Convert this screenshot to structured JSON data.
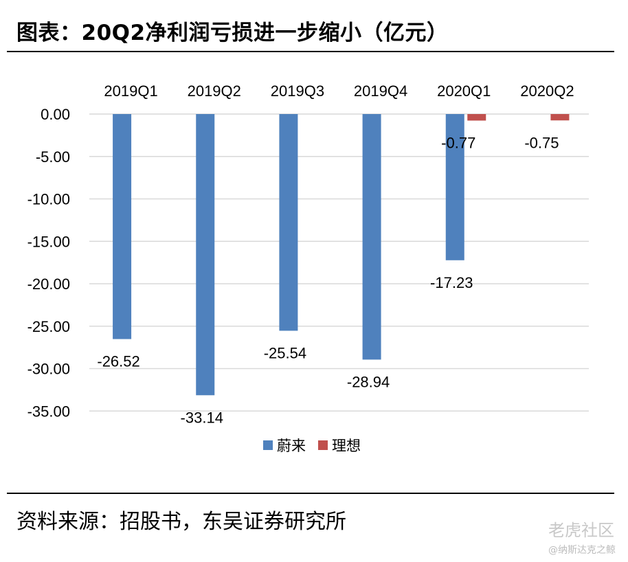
{
  "header": {
    "title": "图表：20Q2净利润亏损进一步缩小（亿元）"
  },
  "footer": {
    "source": "资料来源：招股书，东吴证券研究所"
  },
  "watermark": {
    "brand": "老虎社区",
    "handle": "@纳斯达克之鲸"
  },
  "colors": {
    "nio": "#4F81BD",
    "li": "#C0504D",
    "grid": "#D9D9D9"
  },
  "chart_data": {
    "type": "bar",
    "categories": [
      "2019Q1",
      "2019Q2",
      "2019Q3",
      "2019Q4",
      "2020Q1",
      "2020Q2"
    ],
    "series": [
      {
        "name": "蔚来",
        "values": [
          -26.52,
          -33.14,
          -25.54,
          -28.94,
          -17.23,
          null
        ]
      },
      {
        "name": "理想",
        "values": [
          null,
          null,
          null,
          null,
          -0.77,
          -0.75
        ]
      }
    ],
    "data_labels": [
      [
        "-26.52",
        "-33.14",
        "-25.54",
        "-28.94",
        "-17.23",
        ""
      ],
      [
        "",
        "",
        "",
        "",
        "-0.77",
        "-0.75"
      ]
    ],
    "y_ticks": [
      "0.00",
      "-5.00",
      "-10.00",
      "-15.00",
      "-20.00",
      "-25.00",
      "-30.00",
      "-35.00"
    ],
    "ylim": [
      -35,
      0
    ],
    "grid": true,
    "legend_position": "bottom",
    "x_axis_position": "top"
  }
}
